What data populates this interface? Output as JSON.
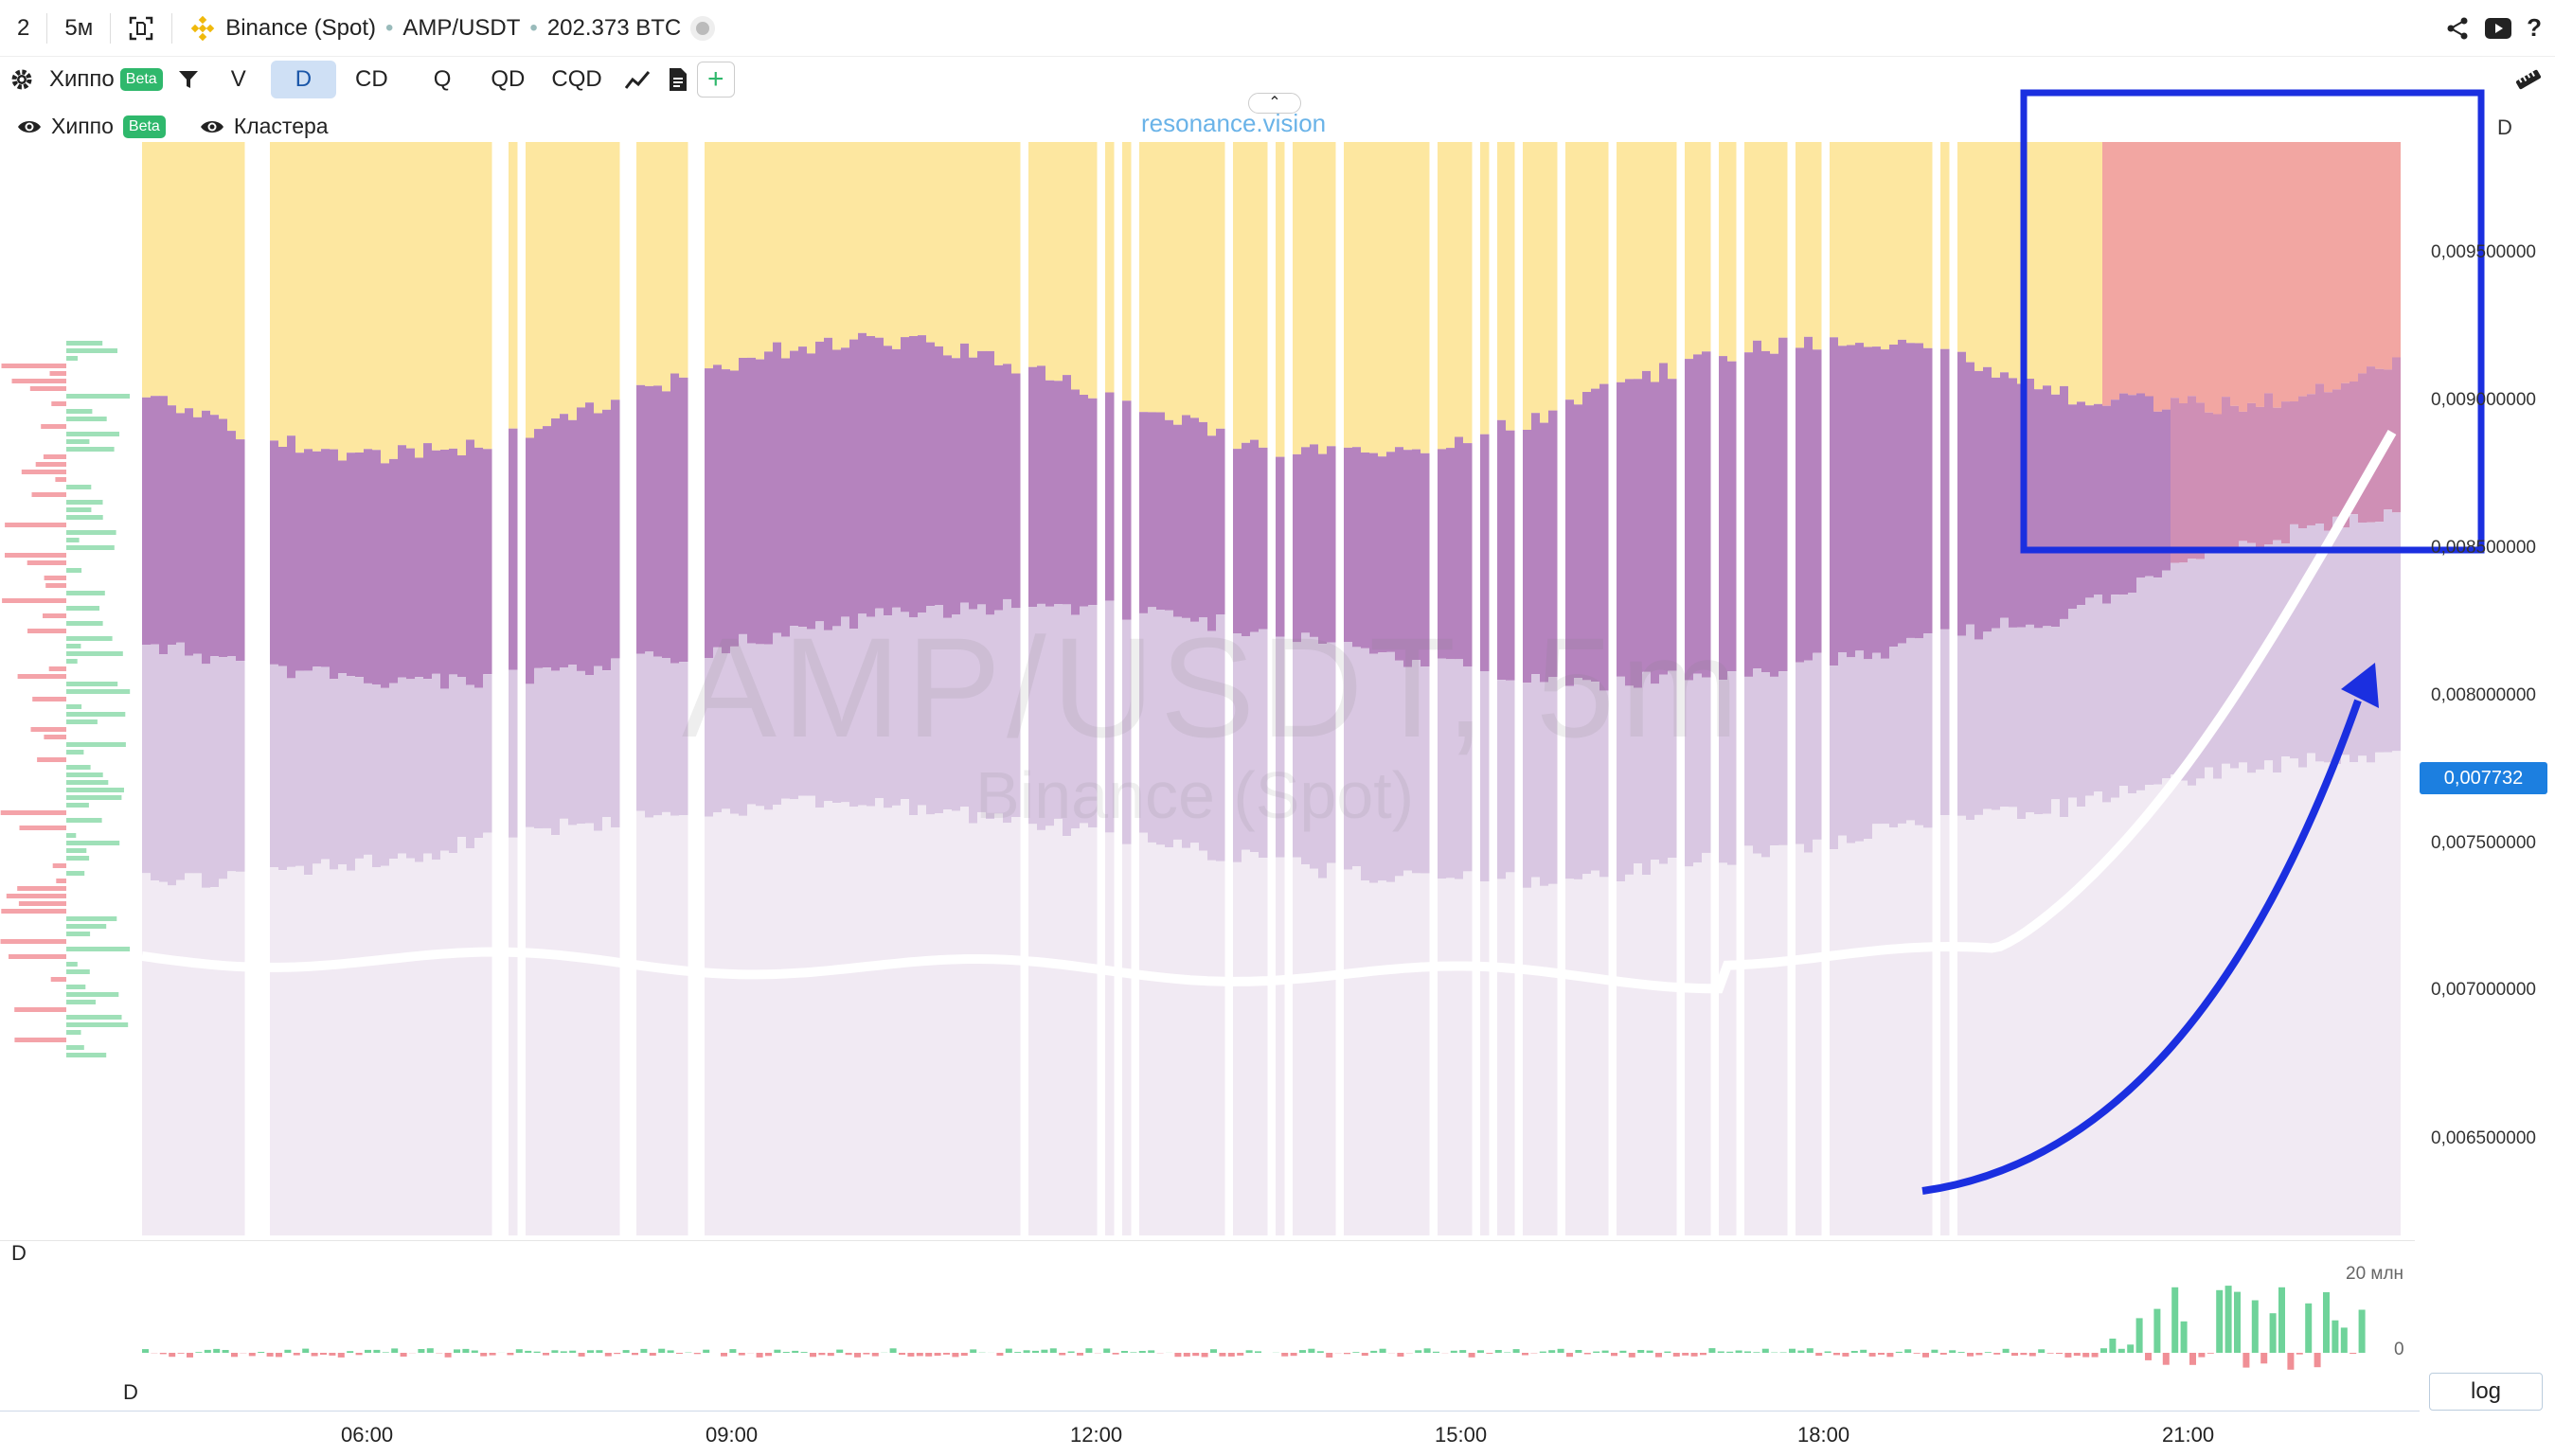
{
  "topbar": {
    "layout_num": "2",
    "interval": "5м",
    "exchange": "Binance (Spot)",
    "pair": "AMP/USDT",
    "volume": "202.373 BTC"
  },
  "toolbar": {
    "hippo": "Хиппо",
    "beta": "Beta",
    "v": "V",
    "d": "D",
    "cd": "CD",
    "q": "Q",
    "qd": "QD",
    "cqd": "CQD"
  },
  "legend": {
    "hippo": "Хиппо",
    "beta": "Beta",
    "clusters": "Кластера"
  },
  "watermark": {
    "pair": "AMP/USDT, 5m",
    "exchange": "Binance (Spot)",
    "site": "resonance.vision"
  },
  "price_axis": {
    "label": "D",
    "ticks": [
      "0,009500000",
      "0,009000000",
      "0,008500000",
      "0,008000000",
      "0,007500000",
      "0,007000000",
      "0,006500000"
    ],
    "current": "0,007732"
  },
  "subpanel": {
    "label_top": "D",
    "label_bottom": "D",
    "tick_20": "20 млн",
    "tick_0": "0"
  },
  "time_axis": [
    "06:00",
    "09:00",
    "12:00",
    "15:00",
    "18:00",
    "21:00"
  ],
  "log_button": "log",
  "colors": {
    "accent": "#1c7fe0",
    "highlight_box": "#1b2fe0",
    "bid_green": "#6fd39a",
    "ask_red": "#f08f96",
    "heat_yellow": "#fde7a0",
    "heat_purple": "#b583be",
    "heat_lavender": "#d9c7e2"
  }
}
